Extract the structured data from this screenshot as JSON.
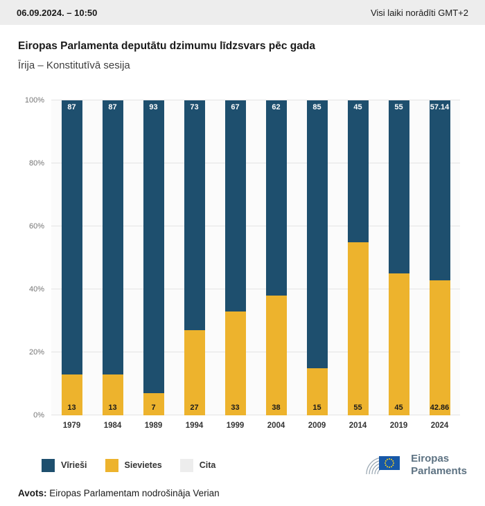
{
  "header": {
    "datetime": "06.09.2024. – 10:50",
    "timezone_note": "Visi laiki norādīti GMT+2"
  },
  "chart_data": {
    "type": "bar",
    "stacked": true,
    "percent": true,
    "title": "Eiropas Parlamenta deputātu dzimumu līdzsvars pēc gada",
    "subtitle": "Īrija – Konstitutīvā sesija",
    "categories": [
      "1979",
      "1984",
      "1989",
      "1994",
      "1999",
      "2004",
      "2009",
      "2014",
      "2019",
      "2024"
    ],
    "series": [
      {
        "name": "Vīrieši",
        "color": "#1e4f6e",
        "label_color": "#ffffff",
        "values": [
          87,
          87,
          93,
          73,
          67,
          62,
          85,
          45,
          55,
          57.14
        ]
      },
      {
        "name": "Sievietes",
        "color": "#edb32d",
        "label_color": "#1a1a1a",
        "values": [
          13,
          13,
          7,
          27,
          33,
          38,
          15,
          55,
          45,
          42.86
        ]
      },
      {
        "name": "Cita",
        "color": "#ededed",
        "label_color": "#1a1a1a",
        "values": [
          0,
          0,
          0,
          0,
          0,
          0,
          0,
          0,
          0,
          0
        ]
      }
    ],
    "ylim": [
      0,
      100
    ],
    "yticks": [
      "0%",
      "20%",
      "40%",
      "60%",
      "80%",
      "100%"
    ],
    "xlabel": "",
    "ylabel": "",
    "grid": true,
    "legend_position": "bottom-left"
  },
  "legend": [
    {
      "label": "Vīrieši",
      "color": "#1e4f6e"
    },
    {
      "label": "Sievietes",
      "color": "#edb32d"
    },
    {
      "label": "Cita",
      "color": "#ededed"
    }
  ],
  "logo": {
    "line1": "Eiropas",
    "line2": "Parlaments"
  },
  "footer": {
    "source_label": "Avots:",
    "source_text": "Eiropas Parlamentam nodrošināja Verian"
  }
}
